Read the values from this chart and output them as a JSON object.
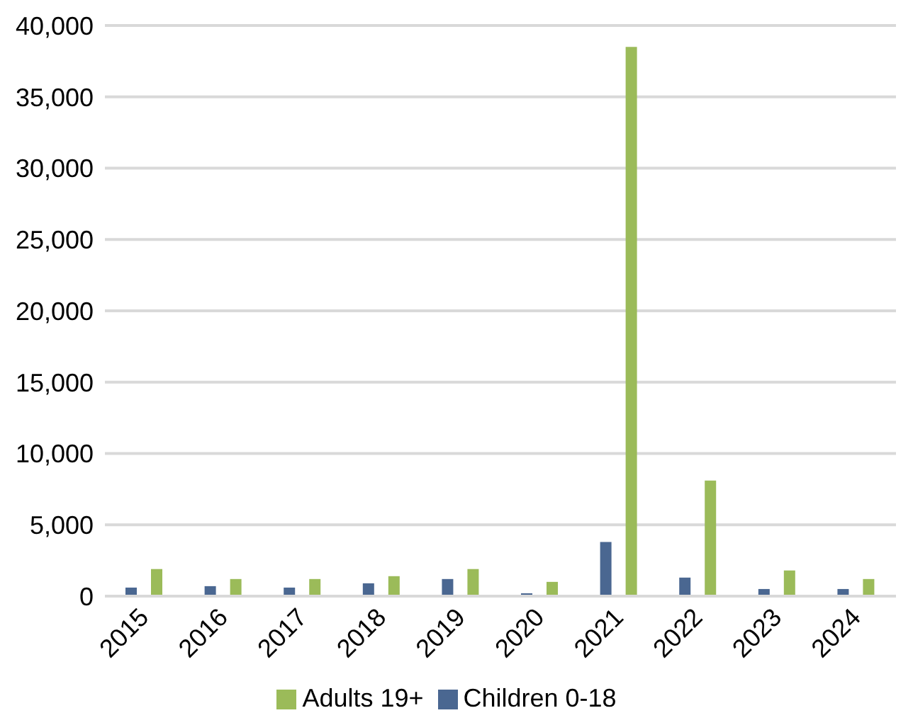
{
  "chart_data": {
    "type": "bar",
    "categories": [
      "2015",
      "2016",
      "2017",
      "2018",
      "2019",
      "2020",
      "2021",
      "2022",
      "2023",
      "2024"
    ],
    "series": [
      {
        "name": "Children 0-18",
        "color": "#4a6791",
        "values": [
          600,
          700,
          600,
          900,
          1200,
          200,
          3800,
          1300,
          500,
          500
        ]
      },
      {
        "name": "Adults 19+",
        "color": "#9bbb59",
        "values": [
          1900,
          1200,
          1200,
          1400,
          1900,
          1000,
          38500,
          8100,
          1800,
          1200
        ]
      }
    ],
    "ylim": [
      0,
      40000
    ],
    "yticks": [
      {
        "value": 0,
        "label": "0"
      },
      {
        "value": 5000,
        "label": "5,000"
      },
      {
        "value": 10000,
        "label": "10,000"
      },
      {
        "value": 15000,
        "label": "15,000"
      },
      {
        "value": 20000,
        "label": "20,000"
      },
      {
        "value": 25000,
        "label": "25,000"
      },
      {
        "value": 30000,
        "label": "30,000"
      },
      {
        "value": 35000,
        "label": "35,000"
      },
      {
        "value": 40000,
        "label": "40,000"
      }
    ],
    "grid": "y",
    "legend": "bottom"
  }
}
